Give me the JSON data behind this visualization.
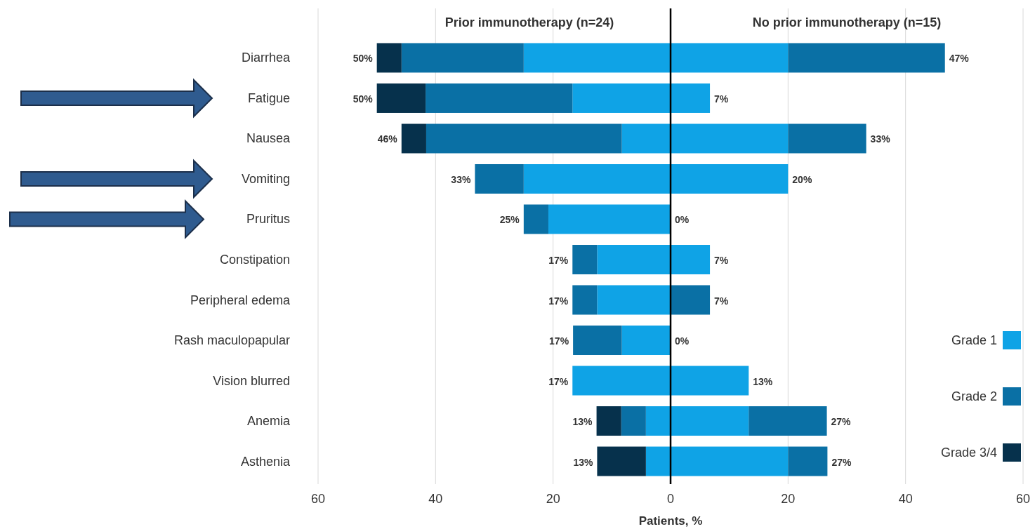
{
  "chart_data": {
    "type": "bar",
    "orientation": "horizontal",
    "stacked": true,
    "xlabel": "Patients, %",
    "categories": [
      "Diarrhea",
      "Fatigue",
      "Nausea",
      "Vomiting",
      "Pruritus",
      "Constipation",
      "Peripheral edema",
      "Rash maculopapular",
      "Vision blurred",
      "Anemia",
      "Asthenia"
    ],
    "series": [
      {
        "name": "Grade 1",
        "color": "#0fa3e6",
        "values": [
          -25,
          -16.7,
          -8.3,
          -25,
          -20.8,
          -12.5,
          -12.5,
          -8.3,
          -16.7,
          -4.2,
          -4.2
        ]
      },
      {
        "name": "Grade 2",
        "color": "#0a70a5",
        "values": [
          -20.8,
          -25,
          -33.3,
          -8.3,
          -4.2,
          -4.2,
          -4.2,
          -8.3,
          0,
          -4.2,
          0
        ]
      },
      {
        "name": "Grade 3/4",
        "color": "#06314c",
        "values": [
          -4.2,
          -8.3,
          -4.2,
          0,
          0,
          0,
          0,
          0,
          0,
          -4.2,
          -8.3
        ]
      },
      {
        "color": "#0fa3e6",
        "values": [
          20,
          6.7,
          20,
          20,
          0,
          6.7,
          0,
          0,
          13.3,
          13.3,
          20
        ]
      },
      {
        "color": "#0a70a5",
        "values": [
          26.7,
          0,
          13.3,
          0,
          0,
          0,
          6.7,
          0,
          0,
          13.3,
          6.7
        ]
      }
    ],
    "totals": [
      [
        "50%",
        "47%"
      ],
      [
        "50%",
        "7%"
      ],
      [
        "46%",
        "33%"
      ],
      [
        "33%",
        "20%"
      ],
      [
        "25%",
        "0%"
      ],
      [
        "17%",
        "7%"
      ],
      [
        "17%",
        "7%"
      ],
      [
        "17%",
        "0%"
      ],
      [
        "17%",
        "13%"
      ],
      [
        "13%",
        "27%"
      ],
      [
        "13%",
        "27%"
      ]
    ],
    "xlim": [
      -60,
      60
    ],
    "xticks": [
      {
        "value": -60,
        "label": "60"
      },
      {
        "value": -40,
        "label": "40"
      },
      {
        "value": -20,
        "label": "20"
      },
      0,
      20,
      40,
      60
    ],
    "grid": "x",
    "legend": "right",
    "ref_lines": [
      {
        "axis": "x",
        "value": 0,
        "color": "#000000"
      }
    ],
    "annotations": [
      "Prior immunotherapy (n=24)",
      "No prior immunotherapy (n=15)"
    ]
  }
}
